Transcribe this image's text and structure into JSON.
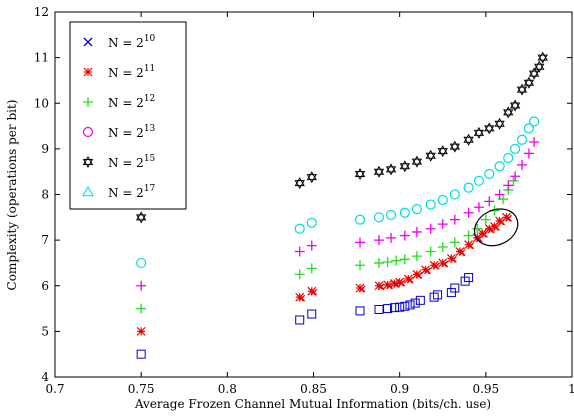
{
  "chart_data": {
    "type": "scatter",
    "xlabel": "Average Frozen Channel Mutual Information (bits/ch. use)",
    "ylabel": "Complexity (operations per bit)",
    "xlim": [
      0.7,
      1.0
    ],
    "ylim": [
      4,
      12
    ],
    "xticks": [
      "0.7",
      "0.75",
      "0.8",
      "0.85",
      "0.9",
      "0.95",
      "1"
    ],
    "yticks": [
      "4",
      "5",
      "6",
      "7",
      "8",
      "9",
      "10",
      "11",
      "12"
    ],
    "legend_position": "top-left",
    "series": [
      {
        "name_base": "N = 2",
        "name_exp": "10",
        "marker": "square",
        "color": "#0000cc",
        "x": [
          0.75,
          0.842,
          0.849,
          0.877,
          0.888,
          0.893,
          0.897,
          0.9,
          0.903,
          0.906,
          0.909,
          0.912,
          0.92,
          0.922,
          0.93,
          0.932,
          0.938,
          0.94
        ],
        "y": [
          4.5,
          5.25,
          5.38,
          5.45,
          5.48,
          5.5,
          5.52,
          5.53,
          5.55,
          5.58,
          5.62,
          5.68,
          5.75,
          5.8,
          5.85,
          5.95,
          6.1,
          6.18
        ]
      },
      {
        "name_base": "N = 2",
        "name_exp": "11",
        "marker": "star",
        "color": "#ee0000",
        "x": [
          0.75,
          0.842,
          0.849,
          0.877,
          0.888,
          0.893,
          0.897,
          0.9,
          0.905,
          0.91,
          0.915,
          0.92,
          0.925,
          0.93,
          0.935,
          0.94,
          0.945,
          0.948,
          0.952,
          0.955,
          0.958,
          0.962
        ],
        "y": [
          5.0,
          5.75,
          5.88,
          5.95,
          6.0,
          6.02,
          6.05,
          6.08,
          6.15,
          6.25,
          6.35,
          6.45,
          6.5,
          6.6,
          6.75,
          6.9,
          7.05,
          7.15,
          7.25,
          7.3,
          7.42,
          7.5
        ]
      },
      {
        "name_base": "N = 2",
        "name_exp": "12",
        "marker": "plus",
        "color": "#22dd22",
        "x": [
          0.75,
          0.842,
          0.849,
          0.877,
          0.888,
          0.893,
          0.898,
          0.903,
          0.91,
          0.918,
          0.925,
          0.932,
          0.94,
          0.945,
          0.95,
          0.955,
          0.96,
          0.963,
          0.966
        ],
        "y": [
          5.5,
          6.25,
          6.38,
          6.45,
          6.5,
          6.52,
          6.55,
          6.58,
          6.65,
          6.75,
          6.85,
          6.95,
          7.1,
          7.25,
          7.45,
          7.65,
          7.9,
          8.1,
          8.3
        ]
      },
      {
        "name_base": "N = 2",
        "name_exp": "13",
        "marker": "plusmag",
        "color": "#ee00ee",
        "x": [
          0.75,
          0.842,
          0.849,
          0.877,
          0.888,
          0.895,
          0.903,
          0.91,
          0.918,
          0.925,
          0.932,
          0.94,
          0.946,
          0.952,
          0.958,
          0.963,
          0.967,
          0.971,
          0.975,
          0.978
        ],
        "y": [
          6.0,
          6.75,
          6.88,
          6.95,
          7.0,
          7.05,
          7.1,
          7.18,
          7.25,
          7.35,
          7.45,
          7.6,
          7.72,
          7.85,
          8.0,
          8.2,
          8.4,
          8.65,
          8.9,
          9.15
        ]
      },
      {
        "name_base": "N = 2",
        "name_exp": "15",
        "marker": "hexagram",
        "color": "#000000",
        "x": [
          0.75,
          0.842,
          0.849,
          0.877,
          0.888,
          0.895,
          0.903,
          0.91,
          0.918,
          0.925,
          0.932,
          0.94,
          0.946,
          0.952,
          0.958,
          0.963,
          0.967,
          0.971,
          0.975,
          0.978,
          0.981,
          0.983
        ],
        "y": [
          7.5,
          8.25,
          8.38,
          8.45,
          8.5,
          8.55,
          8.62,
          8.72,
          8.85,
          8.95,
          9.05,
          9.2,
          9.35,
          9.45,
          9.55,
          9.8,
          9.95,
          10.3,
          10.45,
          10.65,
          10.8,
          11.0
        ]
      },
      {
        "name_base": "N = 2",
        "name_exp": "17",
        "marker": "circle-triangle",
        "color": "#00dddd",
        "x": [
          0.75,
          0.842,
          0.849,
          0.877,
          0.888,
          0.895,
          0.903,
          0.91,
          0.918,
          0.925,
          0.932,
          0.94,
          0.946,
          0.952,
          0.958,
          0.963,
          0.967,
          0.971,
          0.975,
          0.978
        ],
        "y": [
          6.5,
          7.25,
          7.38,
          7.45,
          7.5,
          7.55,
          7.6,
          7.68,
          7.78,
          7.88,
          8.0,
          8.15,
          8.3,
          8.45,
          8.62,
          8.8,
          9.0,
          9.2,
          9.45,
          9.6
        ]
      }
    ],
    "annotation": {
      "type": "ellipse",
      "cx": 0.956,
      "cy": 7.28,
      "rx": 0.013,
      "ry": 0.38
    }
  }
}
